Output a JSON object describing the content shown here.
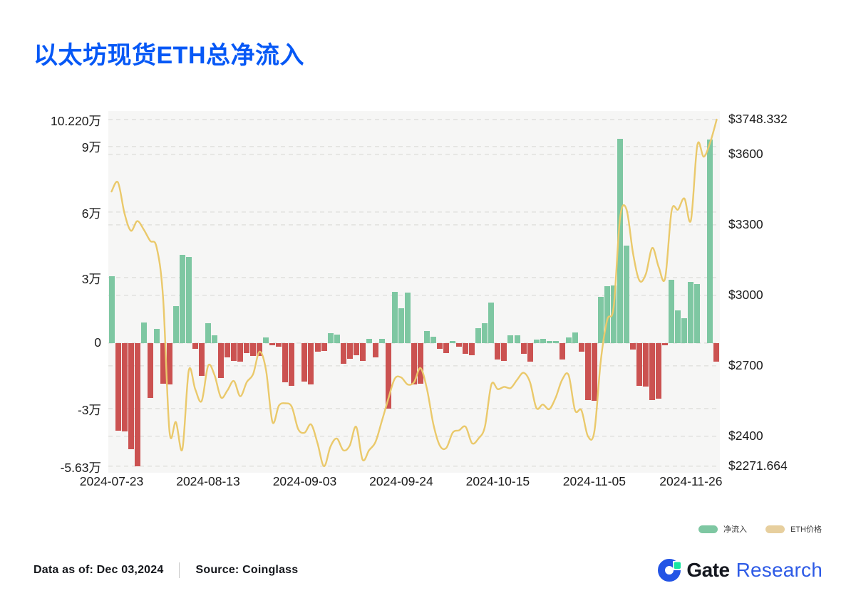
{
  "title": "以太坊现货ETH总净流入",
  "legend": [
    {
      "label": "净流入",
      "color": "#7EC7A2"
    },
    {
      "label": "ETH价格",
      "color": "#E7CF9E"
    }
  ],
  "footer": {
    "data_as_of": "Data as of: Dec 03,2024",
    "source": "Source: Coinglass",
    "brand_gate": "Gate",
    "brand_research": "Research"
  },
  "colors": {
    "inflow_positive": "#7EC7A2",
    "inflow_negative": "#CB5251",
    "price_line": "#EAC96B",
    "title_blue": "#0658F6",
    "plot_background": "#F6F6F5",
    "gridline": "#E3E3E0"
  },
  "chart_data": {
    "type": "bar",
    "subtype": "bar+line dual axis",
    "title": "以太坊现货ETH总净流入",
    "grid": "dashed",
    "legend_position": "bottom-right",
    "x": [
      "2024-07-23",
      "2024-07-24",
      "2024-07-25",
      "2024-07-26",
      "2024-07-29",
      "2024-07-30",
      "2024-07-31",
      "2024-08-01",
      "2024-08-02",
      "2024-08-05",
      "2024-08-06",
      "2024-08-07",
      "2024-08-08",
      "2024-08-09",
      "2024-08-12",
      "2024-08-13",
      "2024-08-14",
      "2024-08-15",
      "2024-08-16",
      "2024-08-19",
      "2024-08-20",
      "2024-08-21",
      "2024-08-22",
      "2024-08-23",
      "2024-08-26",
      "2024-08-27",
      "2024-08-28",
      "2024-08-29",
      "2024-08-30",
      "2024-09-02",
      "2024-09-03",
      "2024-09-04",
      "2024-09-05",
      "2024-09-06",
      "2024-09-09",
      "2024-09-10",
      "2024-09-11",
      "2024-09-12",
      "2024-09-13",
      "2024-09-16",
      "2024-09-17",
      "2024-09-18",
      "2024-09-19",
      "2024-09-20",
      "2024-09-23",
      "2024-09-24",
      "2024-09-25",
      "2024-09-26",
      "2024-09-27",
      "2024-09-30",
      "2024-10-01",
      "2024-10-02",
      "2024-10-03",
      "2024-10-04",
      "2024-10-07",
      "2024-10-08",
      "2024-10-09",
      "2024-10-10",
      "2024-10-11",
      "2024-10-14",
      "2024-10-15",
      "2024-10-16",
      "2024-10-17",
      "2024-10-18",
      "2024-10-21",
      "2024-10-22",
      "2024-10-23",
      "2024-10-24",
      "2024-10-25",
      "2024-10-28",
      "2024-10-29",
      "2024-10-30",
      "2024-10-31",
      "2024-11-01",
      "2024-11-04",
      "2024-11-05",
      "2024-11-06",
      "2024-11-07",
      "2024-11-08",
      "2024-11-11",
      "2024-11-12",
      "2024-11-13",
      "2024-11-14",
      "2024-11-15",
      "2024-11-18",
      "2024-11-19",
      "2024-11-20",
      "2024-11-21",
      "2024-11-22",
      "2024-11-25",
      "2024-11-26",
      "2024-11-27",
      "2024-11-28",
      "2024-11-29",
      "2024-12-02"
    ],
    "series": [
      {
        "name": "净流入",
        "type": "bar",
        "unit": "万 ETH",
        "values": [
          3.05,
          -4.0,
          -4.05,
          -4.85,
          -5.63,
          0.95,
          -2.5,
          0.65,
          -1.85,
          -1.9,
          1.7,
          4.05,
          3.95,
          -0.25,
          -1.5,
          0.9,
          0.35,
          -1.6,
          -0.65,
          -0.8,
          -0.85,
          -0.45,
          -0.6,
          -0.6,
          0.25,
          -0.1,
          -0.15,
          -1.8,
          -1.95,
          0,
          -1.75,
          -1.9,
          -0.4,
          -0.35,
          0.45,
          0.4,
          -0.95,
          -0.7,
          -0.55,
          -0.8,
          0.2,
          -0.65,
          0.2,
          -3.0,
          2.35,
          1.6,
          2.3,
          -1.9,
          -1.85,
          0.55,
          0.3,
          -0.25,
          -0.45,
          0.1,
          -0.15,
          -0.5,
          -0.55,
          0.7,
          0.9,
          1.85,
          -0.75,
          -0.8,
          0.35,
          0.35,
          -0.5,
          -0.85,
          0.15,
          0.2,
          0.1,
          0.1,
          -0.75,
          0.25,
          0.5,
          -0.4,
          -2.6,
          -2.65,
          2.1,
          2.6,
          2.65,
          9.35,
          4.45,
          -0.3,
          -1.95,
          -2.0,
          -2.6,
          -2.55,
          -0.1,
          2.9,
          1.5,
          1.15,
          2.8,
          2.7,
          0,
          9.3,
          -0.85
        ]
      },
      {
        "name": "ETH价格",
        "type": "line",
        "unit": "USD",
        "values": [
          3442,
          3481,
          3350,
          3275,
          3316,
          3280,
          3232,
          3205,
          2990,
          2420,
          2460,
          2345,
          2680,
          2600,
          2550,
          2700,
          2660,
          2565,
          2595,
          2635,
          2570,
          2630,
          2665,
          2760,
          2680,
          2460,
          2530,
          2540,
          2525,
          2430,
          2415,
          2450,
          2370,
          2271.664,
          2355,
          2390,
          2340,
          2360,
          2440,
          2300,
          2340,
          2375,
          2465,
          2560,
          2645,
          2650,
          2620,
          2630,
          2690,
          2600,
          2450,
          2360,
          2350,
          2415,
          2425,
          2440,
          2370,
          2390,
          2440,
          2620,
          2600,
          2610,
          2605,
          2640,
          2670,
          2630,
          2520,
          2535,
          2515,
          2565,
          2640,
          2660,
          2510,
          2510,
          2400,
          2420,
          2720,
          2895,
          2950,
          3330,
          3366,
          3180,
          3063,
          3090,
          3202,
          3120,
          3073,
          3360,
          3365,
          3412,
          3320,
          3640,
          3590,
          3652,
          3748.332
        ]
      }
    ],
    "left_axis": {
      "title": "净流入 (万)",
      "min": -5.63,
      "max": 10.22,
      "tick_values": [
        10.22,
        9,
        6,
        3,
        0,
        -3,
        -5.63
      ],
      "tick_labels": [
        "10.220万",
        "9万",
        "6万",
        "3万",
        "0",
        "-3万",
        "-5.63万"
      ]
    },
    "right_axis": {
      "title": "ETH价格 (USD)",
      "min": 2271.664,
      "max": 3748.332,
      "tick_values": [
        3748.332,
        3600,
        3300,
        3000,
        2700,
        2400,
        2271.664
      ],
      "tick_labels": [
        "$3748.332",
        "$3600",
        "$3300",
        "$3000",
        "$2700",
        "$2400",
        "$2271.664"
      ]
    },
    "x_ticks": {
      "indices": [
        0,
        15,
        30,
        45,
        60,
        75,
        90
      ],
      "labels": [
        "2024-07-23",
        "2024-08-13",
        "2024-09-03",
        "2024-09-24",
        "2024-10-15",
        "2024-11-05",
        "2024-11-26"
      ]
    }
  }
}
